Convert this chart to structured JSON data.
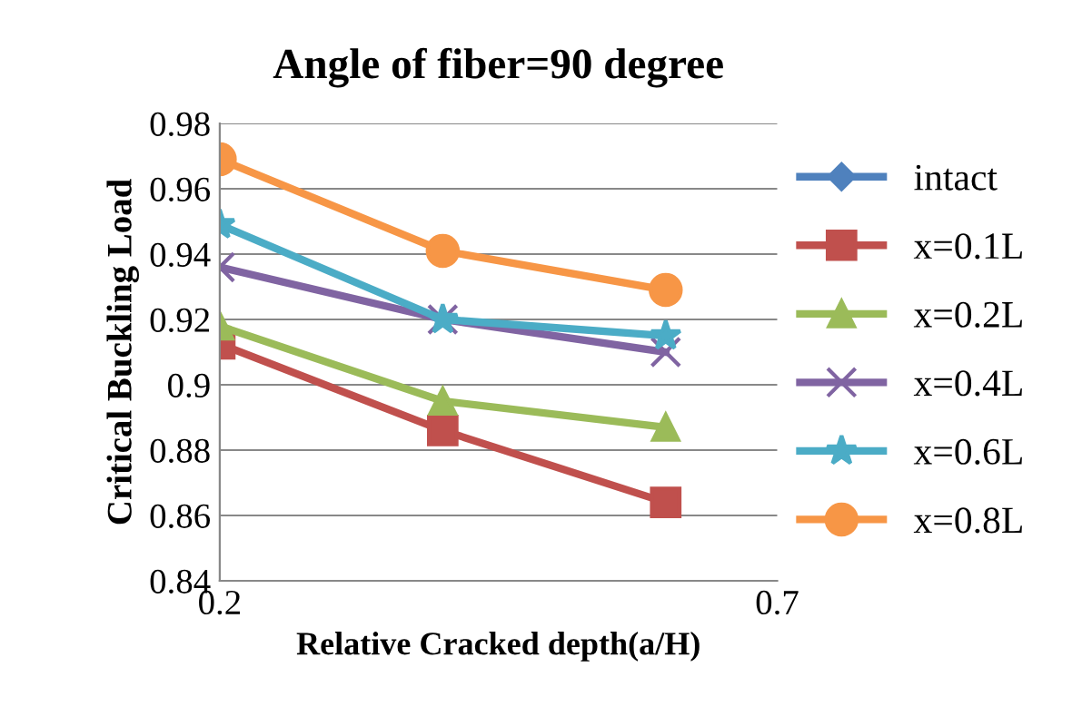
{
  "chart_data": {
    "type": "line",
    "title": "Angle of fiber=90 degree",
    "xlabel": "Relative Cracked depth(a/H)",
    "ylabel": "Critical Buckling Load",
    "x": [
      0.2,
      0.4,
      0.6
    ],
    "series": [
      {
        "name": "intact",
        "color": "#4f81bd",
        "marker": "diamond",
        "values": [
          null,
          null,
          null
        ]
      },
      {
        "name": "x=0.1L",
        "color": "#c0504d",
        "marker": "square",
        "values": [
          0.9125,
          0.886,
          0.864
        ]
      },
      {
        "name": "x=0.2L",
        "color": "#9bbb59",
        "marker": "triangle",
        "values": [
          0.918,
          0.895,
          0.887
        ]
      },
      {
        "name": "x=0.4L",
        "color": "#8064a2",
        "marker": "cross",
        "values": [
          0.936,
          0.92,
          0.91
        ]
      },
      {
        "name": "x=0.6L",
        "color": "#4bacc6",
        "marker": "star",
        "values": [
          0.949,
          0.92,
          0.915
        ]
      },
      {
        "name": "x=0.8L",
        "color": "#f79646",
        "marker": "circle",
        "values": [
          0.969,
          0.941,
          0.929
        ]
      }
    ],
    "xlim": [
      0.2,
      0.7
    ],
    "xticks": [
      0.2,
      0.7
    ],
    "ylim": [
      0.84,
      0.98
    ],
    "yticks": [
      0.84,
      0.86,
      0.88,
      0.9,
      0.92,
      0.94,
      0.96,
      0.98
    ],
    "grid": "y",
    "legend": "right"
  }
}
